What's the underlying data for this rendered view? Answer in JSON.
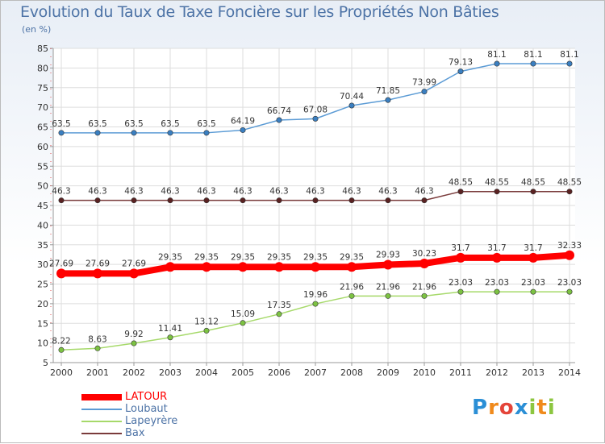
{
  "header": {
    "title": "Evolution du Taux de Taxe Foncière sur les Propriétés Non Bâties",
    "unit": "(en %)"
  },
  "logo": {
    "text": "Proxiti"
  },
  "chart_data": {
    "type": "line",
    "title": "Evolution du Taux de Taxe Foncière sur les Propriétés Non Bâties",
    "ylabel": "(en %)",
    "xlabel": "",
    "ylim": [
      5,
      85
    ],
    "ystep": 5,
    "grid": true,
    "legend": "bottom-left",
    "categories": [
      "2000",
      "2001",
      "2002",
      "2003",
      "2004",
      "2005",
      "2006",
      "2007",
      "2008",
      "2009",
      "2010",
      "2011",
      "2012",
      "2013",
      "2014"
    ],
    "series": [
      {
        "name": "Loubaut",
        "color": "#5b9bd5",
        "marker": "#3a7fc1",
        "values": [
          63.5,
          63.5,
          63.5,
          63.5,
          63.5,
          64.19,
          66.74,
          67.08,
          70.44,
          71.85,
          73.99,
          79.13,
          81.1,
          81.1,
          81.1
        ],
        "labels": [
          "63.5",
          "63.5",
          "63.5",
          "63.5",
          "63.5",
          "64.19",
          "66.74",
          "67.08",
          "70.44",
          "71.85",
          "73.99",
          "79.13",
          "81.1",
          "81.1",
          "81.1"
        ]
      },
      {
        "name": "Bax",
        "color": "#7a3b3b",
        "marker": "#5a2222",
        "values": [
          46.3,
          46.3,
          46.3,
          46.3,
          46.3,
          46.3,
          46.3,
          46.3,
          46.3,
          46.3,
          46.3,
          48.55,
          48.55,
          48.55,
          48.55
        ],
        "labels": [
          "46.3",
          "46.3",
          "46.3",
          "46.3",
          "46.3",
          "46.3",
          "46.3",
          "46.3",
          "46.3",
          "46.3",
          "46.3",
          "48.55",
          "48.55",
          "48.55",
          "48.55"
        ]
      },
      {
        "name": "LATOUR",
        "color": "#ff0000",
        "marker": "#ff0000",
        "values": [
          27.69,
          27.69,
          27.69,
          29.35,
          29.35,
          29.35,
          29.35,
          29.35,
          29.35,
          29.93,
          30.23,
          31.7,
          31.7,
          31.7,
          32.33
        ],
        "labels": [
          "27.69",
          "27.69",
          "27.69",
          "29.35",
          "29.35",
          "29.35",
          "29.35",
          "29.35",
          "29.35",
          "29.93",
          "30.23",
          "31.7",
          "31.7",
          "31.7",
          "32.33"
        ]
      },
      {
        "name": "Lapeyrère",
        "color": "#a6d96a",
        "marker": "#7cc242",
        "values": [
          8.22,
          8.63,
          9.92,
          11.41,
          13.12,
          15.09,
          17.35,
          19.96,
          21.96,
          21.96,
          21.96,
          23.03,
          23.03,
          23.03,
          23.03
        ],
        "labels": [
          "8.22",
          "8.63",
          "9.92",
          "11.41",
          "13.12",
          "15.09",
          "17.35",
          "19.96",
          "21.96",
          "21.96",
          "21.96",
          "23.03",
          "23.03",
          "23.03",
          "23.03"
        ]
      }
    ],
    "legend_order": [
      "LATOUR",
      "Loubaut",
      "Lapeyrère",
      "Bax"
    ]
  }
}
